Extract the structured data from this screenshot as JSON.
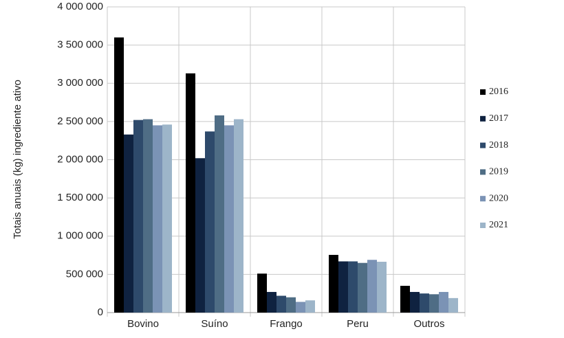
{
  "chart_data": {
    "type": "bar",
    "y_label": "Totais anuais (kg) ingrediente ativo",
    "categories": [
      "Bovino",
      "Suíno",
      "Frango",
      "Peru",
      "Outros"
    ],
    "series": [
      {
        "name": "2016",
        "color": "#000000",
        "values": [
          3600000,
          3130000,
          510000,
          755000,
          350000
        ]
      },
      {
        "name": "2017",
        "color": "#0f2240",
        "values": [
          2330000,
          2020000,
          270000,
          670000,
          270000
        ]
      },
      {
        "name": "2018",
        "color": "#2e4a6b",
        "values": [
          2520000,
          2370000,
          220000,
          670000,
          250000
        ]
      },
      {
        "name": "2019",
        "color": "#4f6d85",
        "values": [
          2530000,
          2580000,
          200000,
          650000,
          240000
        ]
      },
      {
        "name": "2020",
        "color": "#7b93b5",
        "values": [
          2450000,
          2450000,
          140000,
          690000,
          270000
        ]
      },
      {
        "name": "2021",
        "color": "#9db5c9",
        "values": [
          2460000,
          2530000,
          160000,
          665000,
          190000
        ]
      }
    ],
    "ylim": [
      0,
      4000000
    ],
    "yticks": [
      0,
      {
        "value": 500000,
        "label": "500 000"
      },
      {
        "value": 1000000,
        "label": "1 000 000"
      },
      {
        "value": 1500000,
        "label": "1 500 000"
      },
      {
        "value": 2000000,
        "label": "2 000 000"
      },
      {
        "value": 2500000,
        "label": "2 500 000"
      },
      {
        "value": 3000000,
        "label": "3 000 000"
      },
      {
        "value": 3500000,
        "label": "3 500 000"
      },
      {
        "value": 4000000,
        "label": "4 000 000"
      }
    ],
    "grid": true,
    "legend": "right"
  }
}
